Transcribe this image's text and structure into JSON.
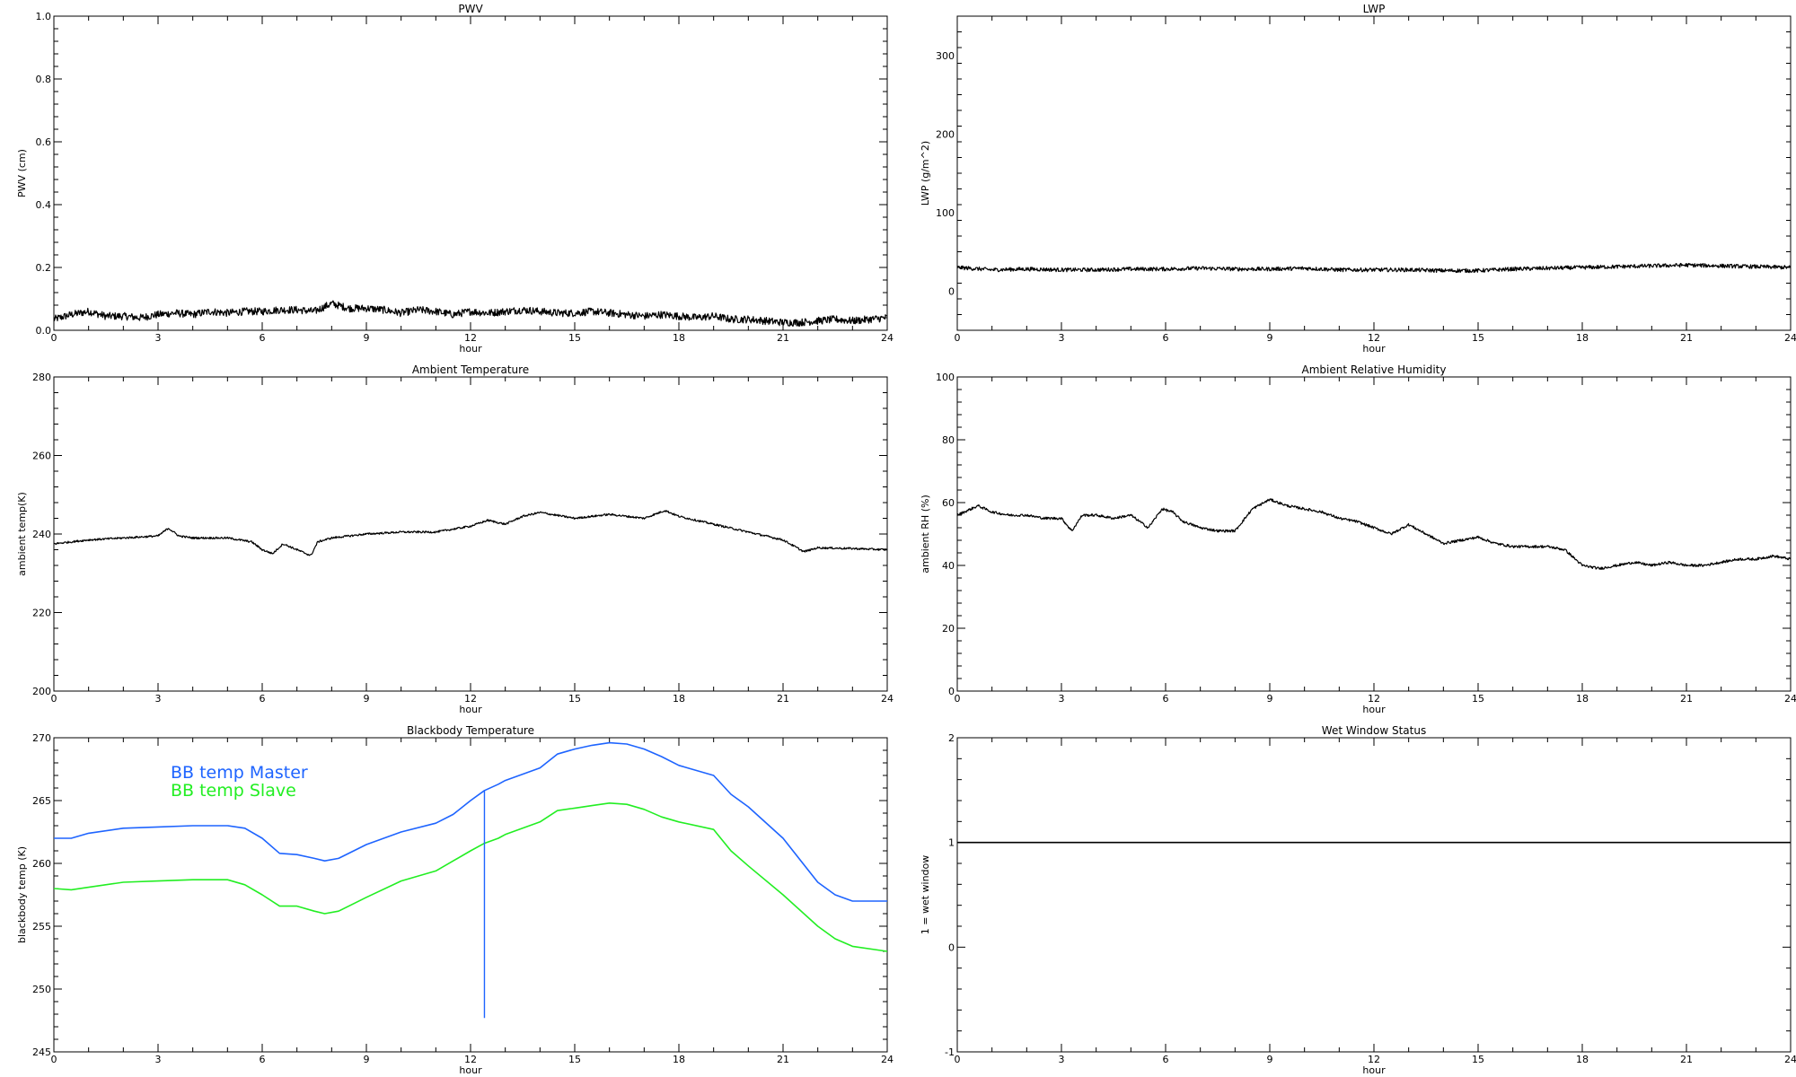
{
  "chart_data": [
    {
      "type": "line",
      "title": "PWV",
      "xlabel": "hour",
      "ylabel": "PWV (cm)",
      "xlim": [
        0,
        24
      ],
      "ylim": [
        0,
        1.0
      ],
      "xticks": [
        "0",
        "3",
        "6",
        "9",
        "12",
        "15",
        "18",
        "21",
        "24"
      ],
      "yticks": [
        "0.0",
        "0.2",
        "0.4",
        "0.6",
        "0.8",
        "1.0"
      ],
      "noise": 0.012,
      "series": [
        {
          "color": "#000000",
          "x": [
            0,
            0.5,
            1,
            1.5,
            2,
            2.5,
            3,
            3.5,
            4,
            4.5,
            5,
            5.5,
            6,
            6.5,
            7,
            7.5,
            8,
            8.5,
            9,
            9.5,
            10,
            10.5,
            11,
            11.5,
            12,
            12.5,
            13,
            13.5,
            14,
            14.5,
            15,
            15.5,
            16,
            16.5,
            17,
            17.5,
            18,
            18.5,
            19,
            19.5,
            20,
            20.5,
            21,
            21.5,
            22,
            22.5,
            23,
            23.5,
            24
          ],
          "y": [
            0.035,
            0.05,
            0.06,
            0.045,
            0.045,
            0.04,
            0.05,
            0.055,
            0.05,
            0.06,
            0.055,
            0.06,
            0.06,
            0.065,
            0.065,
            0.06,
            0.085,
            0.07,
            0.07,
            0.065,
            0.055,
            0.065,
            0.06,
            0.05,
            0.06,
            0.055,
            0.06,
            0.065,
            0.06,
            0.055,
            0.055,
            0.06,
            0.055,
            0.05,
            0.045,
            0.05,
            0.045,
            0.04,
            0.045,
            0.035,
            0.035,
            0.03,
            0.025,
            0.025,
            0.03,
            0.035,
            0.03,
            0.035,
            0.04
          ]
        }
      ]
    },
    {
      "type": "line",
      "title": "LWP",
      "xlabel": "hour",
      "ylabel": "LWP (g/m^2)",
      "xlim": [
        0,
        24
      ],
      "ylim": [
        -50,
        350
      ],
      "xticks": [
        "0",
        "3",
        "6",
        "9",
        "12",
        "15",
        "18",
        "21",
        "24"
      ],
      "yticks": [
        "0",
        "100",
        "200",
        "300"
      ],
      "noise": 2.5,
      "series": [
        {
          "color": "#000000",
          "x": [
            0,
            1,
            2,
            3,
            4,
            5,
            6,
            7,
            8,
            9,
            10,
            11,
            12,
            13,
            14,
            15,
            16,
            17,
            18,
            19,
            20,
            21,
            22,
            23,
            24
          ],
          "y": [
            30,
            27,
            28,
            27,
            27,
            28,
            28,
            29,
            28,
            28,
            29,
            27,
            27,
            27,
            26,
            26,
            28,
            29,
            30,
            31,
            32,
            33,
            32,
            31,
            30
          ]
        }
      ]
    },
    {
      "type": "line",
      "title": "Ambient Temperature",
      "xlabel": "hour",
      "ylabel": "ambient temp(K)",
      "xlim": [
        0,
        24
      ],
      "ylim": [
        200,
        280
      ],
      "xticks": [
        "0",
        "3",
        "6",
        "9",
        "12",
        "15",
        "18",
        "21",
        "24"
      ],
      "yticks": [
        "200",
        "220",
        "240",
        "260",
        "280"
      ],
      "noise": 0.25,
      "series": [
        {
          "color": "#000000",
          "x": [
            0,
            1,
            2,
            3,
            3.3,
            3.6,
            4,
            5,
            5.7,
            6,
            6.3,
            6.6,
            7,
            7.4,
            7.6,
            8,
            9,
            10,
            11,
            12,
            12.5,
            13,
            13.5,
            14,
            15,
            16,
            17,
            17.6,
            18,
            19,
            20,
            21,
            21.6,
            22,
            23,
            24
          ],
          "y": [
            237.5,
            238.5,
            239,
            239.5,
            241.5,
            239.5,
            239,
            239,
            238,
            236,
            235,
            237.5,
            236,
            234.5,
            238,
            239,
            240,
            240.5,
            240.5,
            242,
            243.5,
            242.5,
            244.5,
            245.5,
            244,
            245,
            244,
            246,
            244.5,
            242.5,
            240.5,
            238.5,
            235.5,
            236.5,
            236.3,
            236
          ]
        }
      ]
    },
    {
      "type": "line",
      "title": "Ambient Relative Humidity",
      "xlabel": "hour",
      "ylabel": "ambient RH (%)",
      "xlim": [
        0,
        24
      ],
      "ylim": [
        0,
        100
      ],
      "xticks": [
        "0",
        "3",
        "6",
        "9",
        "12",
        "15",
        "18",
        "21",
        "24"
      ],
      "yticks": [
        "0",
        "20",
        "40",
        "60",
        "80",
        "100"
      ],
      "noise": 0.4,
      "series": [
        {
          "color": "#000000",
          "x": [
            0,
            0.6,
            1,
            1.5,
            2,
            2.5,
            3,
            3.3,
            3.6,
            4,
            4.5,
            5,
            5.5,
            5.9,
            6.2,
            6.5,
            7,
            7.5,
            8,
            8.5,
            9,
            9.5,
            10,
            10.5,
            11,
            11.5,
            12,
            12.5,
            13,
            13.5,
            14,
            14.5,
            15,
            15.5,
            16,
            16.5,
            17,
            17.5,
            18,
            18.5,
            19,
            19.5,
            20,
            20.5,
            21,
            21.5,
            22,
            22.5,
            23,
            23.5,
            24
          ],
          "y": [
            56,
            59,
            57,
            56,
            56,
            55,
            55,
            51,
            56,
            56,
            55,
            56,
            52,
            58,
            57,
            54,
            52,
            51,
            51,
            58,
            61,
            59,
            58,
            57,
            55,
            54,
            52,
            50,
            53,
            50,
            47,
            48,
            49,
            47,
            46,
            46,
            46,
            45,
            40,
            39,
            40,
            41,
            40,
            41,
            40,
            40,
            41,
            42,
            42,
            43,
            42
          ]
        }
      ]
    },
    {
      "type": "line",
      "title": "Blackbody Temperature",
      "xlabel": "hour",
      "ylabel": "blackbody temp (K)",
      "xlim": [
        0,
        24
      ],
      "ylim": [
        245,
        270
      ],
      "xticks": [
        "0",
        "3",
        "6",
        "9",
        "12",
        "15",
        "18",
        "21",
        "24"
      ],
      "yticks": [
        "245",
        "250",
        "255",
        "260",
        "265",
        "270"
      ],
      "noise": 0,
      "legend": [
        "BB temp Master",
        "BB temp Slave"
      ],
      "series": [
        {
          "name": "BB temp Master",
          "color": "#1e64ff",
          "x": [
            0,
            0.5,
            1,
            2,
            3,
            4,
            5,
            5.5,
            6,
            6.5,
            7,
            7.5,
            7.8,
            8.2,
            9,
            10,
            11,
            11.5,
            12,
            12.4,
            12.8,
            13,
            14,
            14.5,
            15,
            15.5,
            16,
            16.5,
            17,
            17.5,
            18,
            19,
            19.5,
            20,
            21,
            22,
            22.5,
            23,
            24
          ],
          "y": [
            262,
            262,
            262.4,
            262.8,
            262.9,
            263,
            263,
            262.8,
            262,
            260.8,
            260.7,
            260.4,
            260.2,
            260.4,
            261.5,
            262.5,
            263.2,
            263.9,
            265,
            265.8,
            266.3,
            266.6,
            267.6,
            268.7,
            269.1,
            269.4,
            269.6,
            269.5,
            269.1,
            268.5,
            267.8,
            267,
            265.5,
            264.5,
            262,
            258.5,
            257.5,
            257,
            257
          ]
        },
        {
          "name": "BB temp Slave",
          "color": "#22ee22",
          "x": [
            0,
            0.5,
            1,
            2,
            3,
            4,
            5,
            5.5,
            6,
            6.5,
            7,
            7.5,
            7.8,
            8.2,
            9,
            10,
            11,
            11.5,
            12,
            12.4,
            12.8,
            13,
            14,
            14.5,
            15,
            15.5,
            16,
            16.5,
            17,
            17.5,
            18,
            19,
            19.5,
            20,
            21,
            22,
            22.5,
            23,
            24
          ],
          "y": [
            258,
            257.9,
            258.1,
            258.5,
            258.6,
            258.7,
            258.7,
            258.3,
            257.5,
            256.6,
            256.6,
            256.2,
            256,
            256.2,
            257.3,
            258.6,
            259.4,
            260.2,
            261,
            261.6,
            262,
            262.3,
            263.3,
            264.2,
            264.4,
            264.6,
            264.8,
            264.7,
            264.3,
            263.7,
            263.3,
            262.7,
            261,
            259.8,
            257.5,
            255,
            254,
            253.4,
            253
          ]
        }
      ],
      "extra_marks": [
        {
          "kind": "vertical-line",
          "color": "#1e64ff",
          "x": 12.4,
          "y_from": 247.7,
          "y_to": 265.8
        }
      ]
    },
    {
      "type": "line",
      "title": "Wet Window Status",
      "xlabel": "hour",
      "ylabel": "1 = wet window",
      "xlim": [
        0,
        24
      ],
      "ylim": [
        -1,
        2
      ],
      "xticks": [
        "0",
        "3",
        "6",
        "9",
        "12",
        "15",
        "18",
        "21",
        "24"
      ],
      "yticks": [
        "-1",
        "0",
        "1",
        "2"
      ],
      "noise": 0,
      "series": [
        {
          "color": "#000000",
          "x": [
            0,
            24
          ],
          "y": [
            1,
            1
          ]
        }
      ]
    }
  ]
}
